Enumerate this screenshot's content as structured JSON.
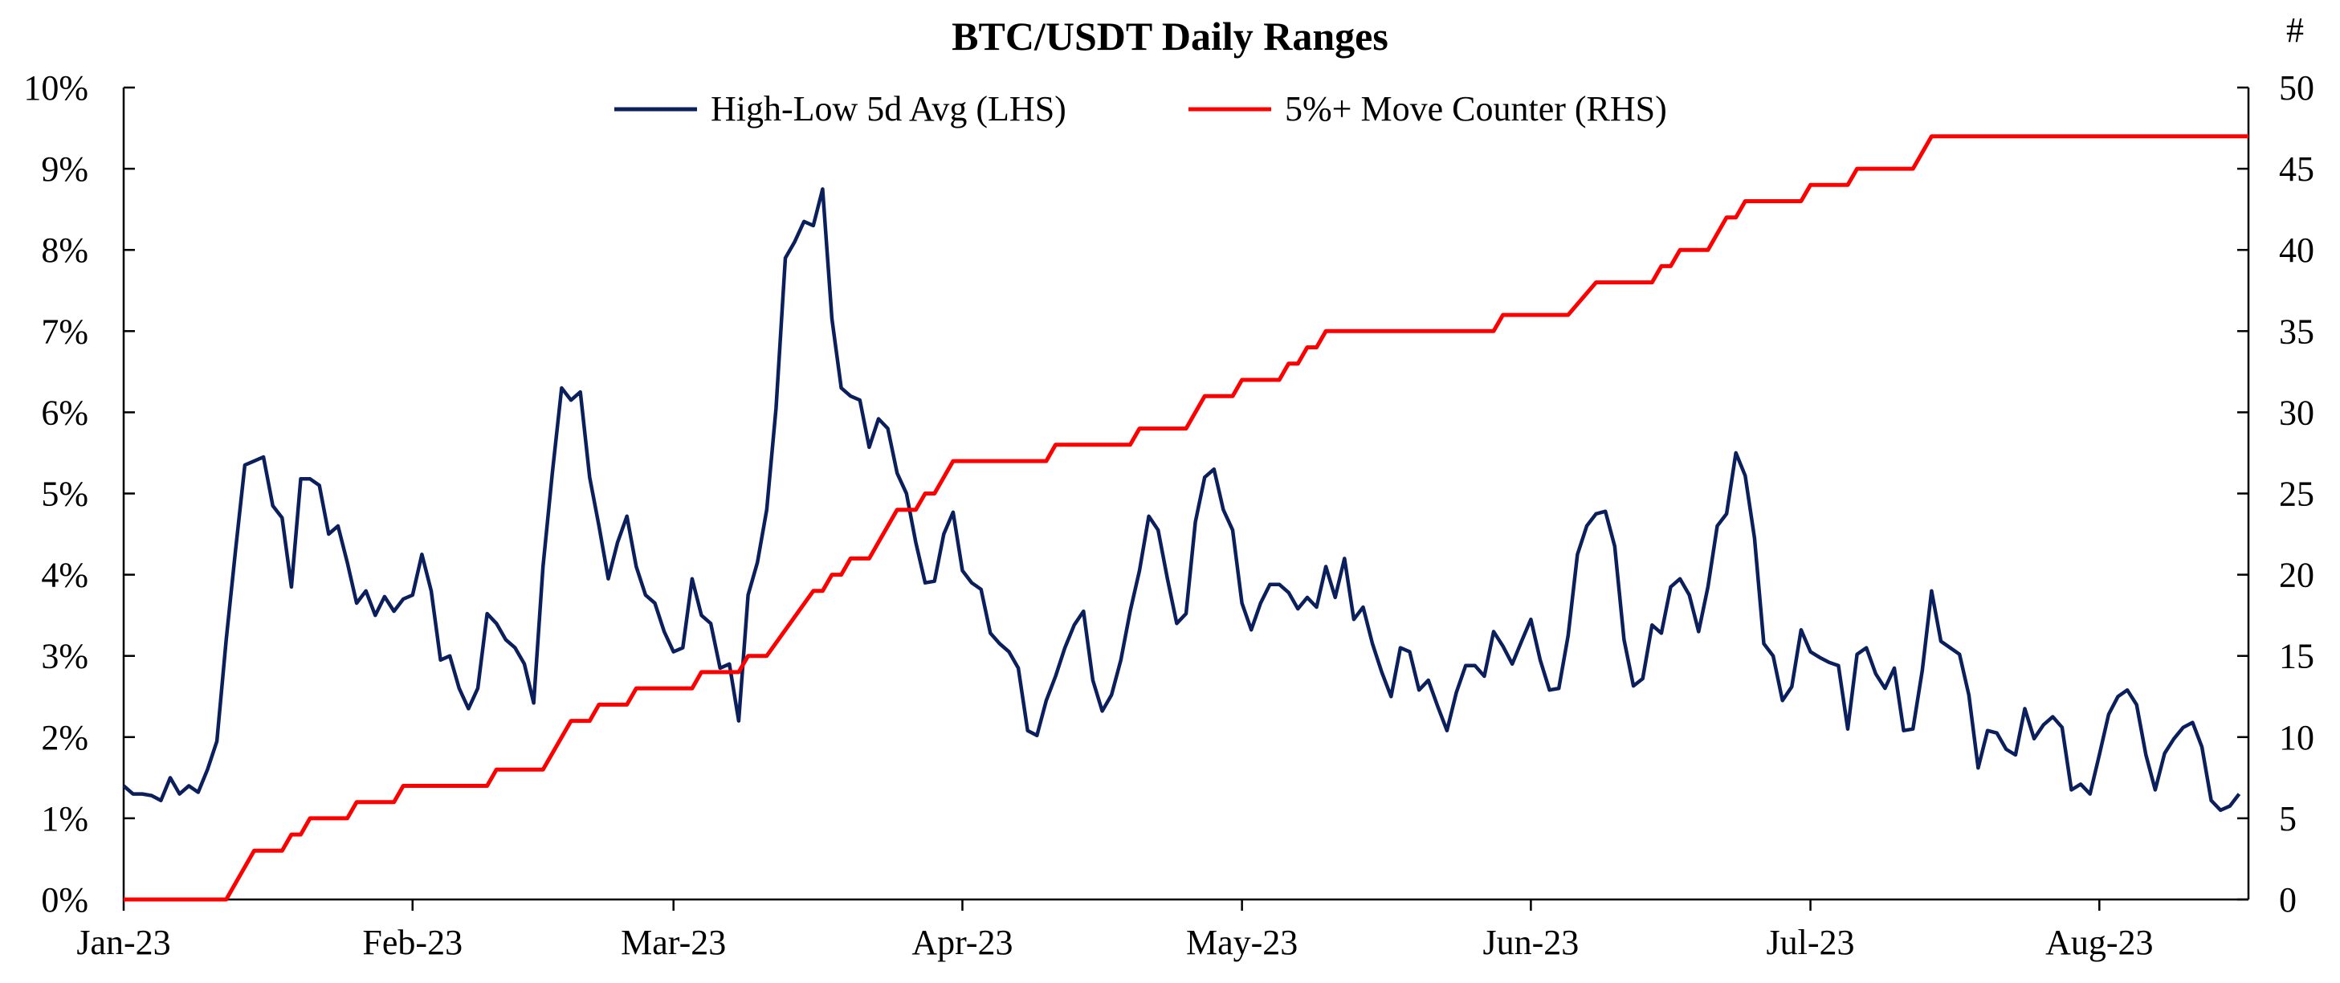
{
  "chart_data": {
    "type": "line",
    "title": "BTC/USDT Daily Ranges",
    "right_axis_unit": "#",
    "x_tick_labels": [
      "Jan-23",
      "Feb-23",
      "Mar-23",
      "Apr-23",
      "May-23",
      "Jun-23",
      "Jul-23",
      "Aug-23"
    ],
    "x_tick_days": [
      0,
      31,
      59,
      90,
      120,
      151,
      181,
      212
    ],
    "x_range_days": [
      0,
      228
    ],
    "left_axis": {
      "ylim": [
        0,
        10
      ],
      "ticks": [
        "0%",
        "1%",
        "2%",
        "3%",
        "4%",
        "5%",
        "6%",
        "7%",
        "8%",
        "9%",
        "10%"
      ]
    },
    "right_axis": {
      "ylim": [
        0,
        50
      ],
      "ticks": [
        "0",
        "5",
        "10",
        "15",
        "20",
        "25",
        "30",
        "35",
        "40",
        "45",
        "50"
      ]
    },
    "legend_position": "top-center",
    "colors": {
      "lhs": "#0b1f5c",
      "rhs": "#ff0000"
    },
    "series": [
      {
        "name": "High-Low 5d Avg (LHS)",
        "axis": "left",
        "points": [
          [
            0,
            1.4
          ],
          [
            1,
            1.3
          ],
          [
            2,
            1.3
          ],
          [
            3,
            1.28
          ],
          [
            4,
            1.22
          ],
          [
            5,
            1.5
          ],
          [
            6,
            1.3
          ],
          [
            7,
            1.4
          ],
          [
            8,
            1.32
          ],
          [
            9,
            1.6
          ],
          [
            10,
            1.95
          ],
          [
            11,
            3.2
          ],
          [
            12,
            4.3
          ],
          [
            13,
            5.35
          ],
          [
            14,
            5.4
          ],
          [
            15,
            5.45
          ],
          [
            16,
            4.85
          ],
          [
            17,
            4.7
          ],
          [
            18,
            3.85
          ],
          [
            19,
            5.18
          ],
          [
            20,
            5.18
          ],
          [
            21,
            5.1
          ],
          [
            22,
            4.5
          ],
          [
            23,
            4.6
          ],
          [
            24,
            4.15
          ],
          [
            25,
            3.65
          ],
          [
            26,
            3.8
          ],
          [
            27,
            3.5
          ],
          [
            28,
            3.73
          ],
          [
            29,
            3.55
          ],
          [
            30,
            3.7
          ],
          [
            31,
            3.75
          ],
          [
            32,
            4.25
          ],
          [
            33,
            3.8
          ],
          [
            34,
            2.95
          ],
          [
            35,
            3.0
          ],
          [
            36,
            2.6
          ],
          [
            37,
            2.35
          ],
          [
            38,
            2.6
          ],
          [
            39,
            3.52
          ],
          [
            40,
            3.4
          ],
          [
            41,
            3.2
          ],
          [
            42,
            3.1
          ],
          [
            43,
            2.9
          ],
          [
            44,
            2.42
          ],
          [
            45,
            4.1
          ],
          [
            46,
            5.25
          ],
          [
            47,
            6.3
          ],
          [
            48,
            6.15
          ],
          [
            49,
            6.25
          ],
          [
            50,
            5.2
          ],
          [
            51,
            4.6
          ],
          [
            52,
            3.95
          ],
          [
            53,
            4.4
          ],
          [
            54,
            4.72
          ],
          [
            55,
            4.1
          ],
          [
            56,
            3.75
          ],
          [
            57,
            3.65
          ],
          [
            58,
            3.3
          ],
          [
            59,
            3.05
          ],
          [
            60,
            3.1
          ],
          [
            61,
            3.95
          ],
          [
            62,
            3.5
          ],
          [
            63,
            3.4
          ],
          [
            64,
            2.85
          ],
          [
            65,
            2.9
          ],
          [
            66,
            2.2
          ],
          [
            67,
            3.75
          ],
          [
            68,
            4.15
          ],
          [
            69,
            4.8
          ],
          [
            70,
            6.05
          ],
          [
            71,
            7.9
          ],
          [
            72,
            8.1
          ],
          [
            73,
            8.35
          ],
          [
            74,
            8.3
          ],
          [
            75,
            8.75
          ],
          [
            76,
            7.15
          ],
          [
            77,
            6.3
          ],
          [
            78,
            6.2
          ],
          [
            79,
            6.15
          ],
          [
            80,
            5.57
          ],
          [
            81,
            5.92
          ],
          [
            82,
            5.8
          ],
          [
            83,
            5.25
          ],
          [
            84,
            5.0
          ],
          [
            85,
            4.4
          ],
          [
            86,
            3.9
          ],
          [
            87,
            3.92
          ],
          [
            88,
            4.5
          ],
          [
            89,
            4.77
          ],
          [
            90,
            4.05
          ],
          [
            91,
            3.9
          ],
          [
            92,
            3.82
          ],
          [
            93,
            3.28
          ],
          [
            94,
            3.15
          ],
          [
            95,
            3.05
          ],
          [
            96,
            2.85
          ],
          [
            97,
            2.08
          ],
          [
            98,
            2.02
          ],
          [
            99,
            2.45
          ],
          [
            100,
            2.75
          ],
          [
            101,
            3.1
          ],
          [
            102,
            3.38
          ],
          [
            103,
            3.55
          ],
          [
            104,
            2.7
          ],
          [
            105,
            2.32
          ],
          [
            106,
            2.52
          ],
          [
            107,
            2.95
          ],
          [
            108,
            3.55
          ],
          [
            109,
            4.05
          ],
          [
            110,
            4.72
          ],
          [
            111,
            4.55
          ],
          [
            112,
            3.95
          ],
          [
            113,
            3.4
          ],
          [
            114,
            3.52
          ],
          [
            115,
            4.65
          ],
          [
            116,
            5.2
          ],
          [
            117,
            5.3
          ],
          [
            118,
            4.8
          ],
          [
            119,
            4.55
          ],
          [
            120,
            3.65
          ],
          [
            121,
            3.32
          ],
          [
            122,
            3.65
          ],
          [
            123,
            3.88
          ],
          [
            124,
            3.88
          ],
          [
            125,
            3.78
          ],
          [
            126,
            3.58
          ],
          [
            127,
            3.72
          ],
          [
            128,
            3.6
          ],
          [
            129,
            4.1
          ],
          [
            130,
            3.72
          ],
          [
            131,
            4.2
          ],
          [
            132,
            3.45
          ],
          [
            133,
            3.6
          ],
          [
            134,
            3.15
          ],
          [
            135,
            2.8
          ],
          [
            136,
            2.5
          ],
          [
            137,
            3.1
          ],
          [
            138,
            3.05
          ],
          [
            139,
            2.58
          ],
          [
            140,
            2.7
          ],
          [
            141,
            2.38
          ],
          [
            142,
            2.08
          ],
          [
            143,
            2.55
          ],
          [
            144,
            2.88
          ],
          [
            145,
            2.88
          ],
          [
            146,
            2.75
          ],
          [
            147,
            3.3
          ],
          [
            148,
            3.12
          ],
          [
            149,
            2.9
          ],
          [
            150,
            3.18
          ],
          [
            151,
            3.45
          ],
          [
            152,
            2.95
          ],
          [
            153,
            2.58
          ],
          [
            154,
            2.6
          ],
          [
            155,
            3.25
          ],
          [
            156,
            4.25
          ],
          [
            157,
            4.6
          ],
          [
            158,
            4.75
          ],
          [
            159,
            4.78
          ],
          [
            160,
            4.35
          ],
          [
            161,
            3.2
          ],
          [
            162,
            2.63
          ],
          [
            163,
            2.72
          ],
          [
            164,
            3.38
          ],
          [
            165,
            3.28
          ],
          [
            166,
            3.85
          ],
          [
            167,
            3.95
          ],
          [
            168,
            3.75
          ],
          [
            169,
            3.3
          ],
          [
            170,
            3.85
          ],
          [
            171,
            4.6
          ],
          [
            172,
            4.75
          ],
          [
            173,
            5.5
          ],
          [
            174,
            5.22
          ],
          [
            175,
            4.45
          ],
          [
            176,
            3.15
          ],
          [
            177,
            3.0
          ],
          [
            178,
            2.45
          ],
          [
            179,
            2.62
          ],
          [
            180,
            3.32
          ],
          [
            181,
            3.05
          ],
          [
            182,
            2.98
          ],
          [
            183,
            2.92
          ],
          [
            184,
            2.88
          ],
          [
            185,
            2.1
          ],
          [
            186,
            3.02
          ],
          [
            187,
            3.1
          ],
          [
            188,
            2.78
          ],
          [
            189,
            2.6
          ],
          [
            190,
            2.85
          ],
          [
            191,
            2.08
          ],
          [
            192,
            2.1
          ],
          [
            193,
            2.82
          ],
          [
            194,
            3.8
          ],
          [
            195,
            3.18
          ],
          [
            196,
            3.1
          ],
          [
            197,
            3.02
          ],
          [
            198,
            2.52
          ],
          [
            199,
            1.62
          ],
          [
            200,
            2.08
          ],
          [
            201,
            2.05
          ],
          [
            202,
            1.85
          ],
          [
            203,
            1.78
          ],
          [
            204,
            2.35
          ],
          [
            205,
            1.98
          ],
          [
            206,
            2.15
          ],
          [
            207,
            2.25
          ],
          [
            208,
            2.12
          ],
          [
            209,
            1.35
          ],
          [
            210,
            1.42
          ],
          [
            211,
            1.3
          ],
          [
            212,
            1.78
          ],
          [
            213,
            2.28
          ],
          [
            214,
            2.5
          ],
          [
            215,
            2.58
          ],
          [
            216,
            2.4
          ],
          [
            217,
            1.78
          ],
          [
            218,
            1.35
          ],
          [
            219,
            1.8
          ],
          [
            220,
            1.98
          ],
          [
            221,
            2.12
          ],
          [
            222,
            2.18
          ],
          [
            223,
            1.88
          ],
          [
            224,
            1.22
          ],
          [
            225,
            1.1
          ],
          [
            226,
            1.15
          ],
          [
            227,
            1.3
          ]
        ]
      },
      {
        "name": "5%+ Move Counter (RHS)",
        "axis": "right",
        "points": [
          [
            0,
            0
          ],
          [
            11,
            0
          ],
          [
            14,
            3
          ],
          [
            17,
            3
          ],
          [
            18,
            4
          ],
          [
            19,
            4
          ],
          [
            20,
            5
          ],
          [
            24,
            5
          ],
          [
            25,
            6
          ],
          [
            29,
            6
          ],
          [
            30,
            7
          ],
          [
            39,
            7
          ],
          [
            40,
            8
          ],
          [
            45,
            8
          ],
          [
            48,
            11
          ],
          [
            50,
            11
          ],
          [
            51,
            12
          ],
          [
            54,
            12
          ],
          [
            55,
            13
          ],
          [
            61,
            13
          ],
          [
            62,
            14
          ],
          [
            66,
            14
          ],
          [
            67,
            15
          ],
          [
            69,
            15
          ],
          [
            74,
            19
          ],
          [
            75,
            19
          ],
          [
            76,
            20
          ],
          [
            77,
            20
          ],
          [
            78,
            21
          ],
          [
            80,
            21
          ],
          [
            83,
            24
          ],
          [
            85,
            24
          ],
          [
            86,
            25
          ],
          [
            87,
            25
          ],
          [
            89,
            27
          ],
          [
            99,
            27
          ],
          [
            100,
            28
          ],
          [
            108,
            28
          ],
          [
            109,
            29
          ],
          [
            114,
            29
          ],
          [
            116,
            31
          ],
          [
            119,
            31
          ],
          [
            120,
            32
          ],
          [
            124,
            32
          ],
          [
            125,
            33
          ],
          [
            126,
            33
          ],
          [
            127,
            34
          ],
          [
            128,
            34
          ],
          [
            129,
            35
          ],
          [
            147,
            35
          ],
          [
            148,
            36
          ],
          [
            155,
            36
          ],
          [
            158,
            38
          ],
          [
            164,
            38
          ],
          [
            165,
            39
          ],
          [
            166,
            39
          ],
          [
            167,
            40
          ],
          [
            170,
            40
          ],
          [
            172,
            42
          ],
          [
            173,
            42
          ],
          [
            174,
            43
          ],
          [
            180,
            43
          ],
          [
            181,
            44
          ],
          [
            185,
            44
          ],
          [
            186,
            45
          ],
          [
            192,
            45
          ],
          [
            194,
            47
          ],
          [
            228,
            47
          ]
        ]
      }
    ]
  }
}
